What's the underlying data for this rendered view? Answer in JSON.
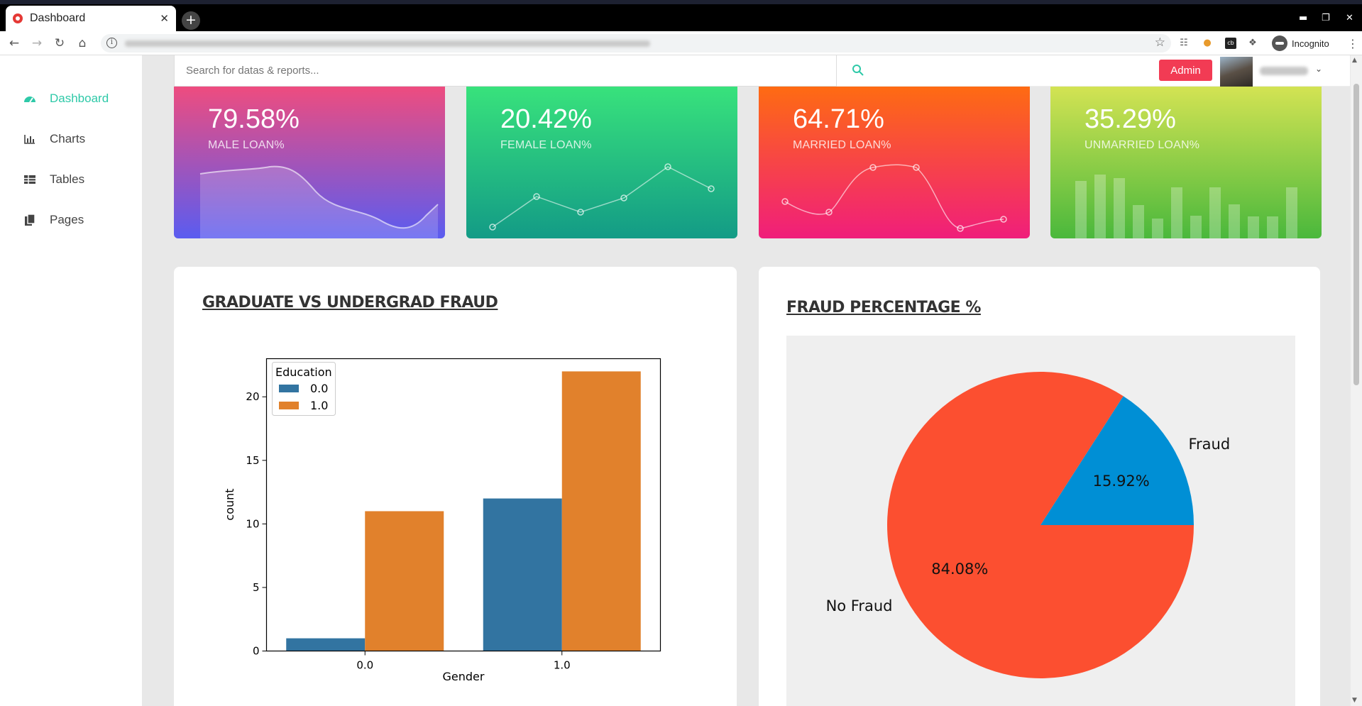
{
  "browser": {
    "tab_title": "Dashboard",
    "tab_close": "✕",
    "new_tab": "+",
    "incognito_label": "Incognito"
  },
  "sidebar": {
    "items": [
      {
        "label": "Dashboard",
        "icon": "dashboard-icon",
        "active": true
      },
      {
        "label": "Charts",
        "icon": "bar-chart-icon",
        "active": false
      },
      {
        "label": "Tables",
        "icon": "table-icon",
        "active": false
      },
      {
        "label": "Pages",
        "icon": "pages-icon",
        "active": false
      }
    ]
  },
  "topbar": {
    "search_placeholder": "Search for datas & reports...",
    "admin_label": "Admin"
  },
  "cards": [
    {
      "value": "79.58%",
      "label": "MALE LOAN%"
    },
    {
      "value": "20.42%",
      "label": "FEMALE LOAN%"
    },
    {
      "value": "64.71%",
      "label": "MARRIED LOAN%"
    },
    {
      "value": "35.29%",
      "label": "UNMARRIED LOAN%"
    }
  ],
  "panels": {
    "bar_title": "GRADUATE VS UNDERGRAD FRAUD",
    "pie_title": "FRAUD PERCENTAGE %"
  },
  "colors": {
    "accent": "#2ec9a8",
    "admin": "#f23b54",
    "series_0": "#3274a1",
    "series_1": "#e1812c",
    "pie_fraud": "#008fd5",
    "pie_nofraud": "#fc4f30"
  },
  "chart_data": [
    {
      "type": "bar",
      "categories": [
        "0.0",
        "1.0"
      ],
      "xlabel": "Gender",
      "ylabel": "count",
      "ylim": [
        0,
        23
      ],
      "yticks": [
        0,
        5,
        10,
        15,
        20
      ],
      "legend_title": "Education",
      "legend_position": "top-left",
      "series": [
        {
          "name": "0.0",
          "values": [
            1,
            12
          ]
        },
        {
          "name": "1.0",
          "values": [
            11,
            22
          ]
        }
      ]
    },
    {
      "type": "pie",
      "labels": [
        "Fraud",
        "No Fraud"
      ],
      "values": [
        15.92,
        84.08
      ],
      "pct_labels": [
        "15.92%",
        "84.08%"
      ]
    }
  ]
}
